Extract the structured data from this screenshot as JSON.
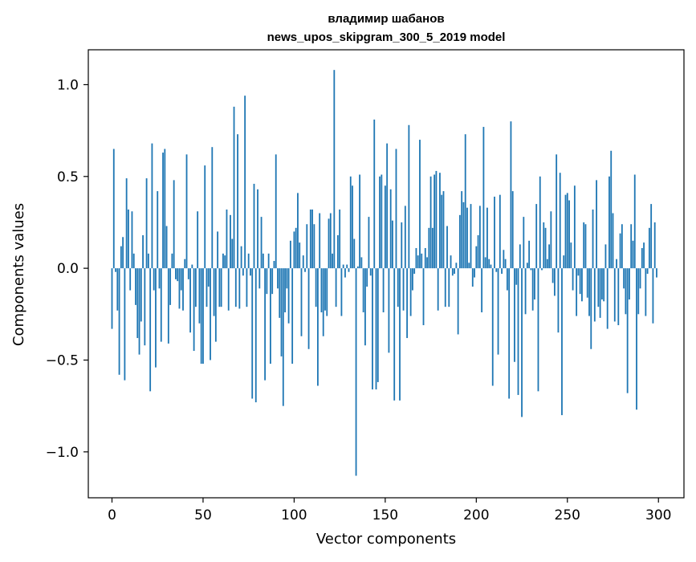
{
  "chart_data": {
    "type": "bar",
    "title": "владимир шабанов\nnews_upos_skipgram_300_5_2019 model",
    "title_lines": [
      "владимир шабанов",
      "news_upos_skipgram_300_5_2019 model"
    ],
    "xlabel": "Vector components",
    "ylabel": "Components values",
    "xlim": [
      -13,
      314
    ],
    "ylim": [
      -1.25,
      1.19
    ],
    "xticks": [
      0,
      50,
      100,
      150,
      200,
      250,
      300
    ],
    "xtick_labels": [
      "0",
      "50",
      "100",
      "150",
      "200",
      "250",
      "300"
    ],
    "yticks": [
      -1.0,
      -0.5,
      0.0,
      0.5,
      1.0
    ],
    "ytick_labels": [
      "−1.0",
      "−0.5",
      "0.0",
      "0.5",
      "1.0"
    ],
    "bar_color": "#1f77b4",
    "grid": false,
    "x": [
      0,
      1,
      2,
      3,
      4,
      5,
      6,
      7,
      8,
      9,
      10,
      11,
      12,
      13,
      14,
      15,
      16,
      17,
      18,
      19,
      20,
      21,
      22,
      23,
      24,
      25,
      26,
      27,
      28,
      29,
      30,
      31,
      32,
      33,
      34,
      35,
      36,
      37,
      38,
      39,
      40,
      41,
      42,
      43,
      44,
      45,
      46,
      47,
      48,
      49,
      50,
      51,
      52,
      53,
      54,
      55,
      56,
      57,
      58,
      59,
      60,
      61,
      62,
      63,
      64,
      65,
      66,
      67,
      68,
      69,
      70,
      71,
      72,
      73,
      74,
      75,
      76,
      77,
      78,
      79,
      80,
      81,
      82,
      83,
      84,
      85,
      86,
      87,
      88,
      89,
      90,
      91,
      92,
      93,
      94,
      95,
      96,
      97,
      98,
      99,
      100,
      101,
      102,
      103,
      104,
      105,
      106,
      107,
      108,
      109,
      110,
      111,
      112,
      113,
      114,
      115,
      116,
      117,
      118,
      119,
      120,
      121,
      122,
      123,
      124,
      125,
      126,
      127,
      128,
      129,
      130,
      131,
      132,
      133,
      134,
      135,
      136,
      137,
      138,
      139,
      140,
      141,
      142,
      143,
      144,
      145,
      146,
      147,
      148,
      149,
      150,
      151,
      152,
      153,
      154,
      155,
      156,
      157,
      158,
      159,
      160,
      161,
      162,
      163,
      164,
      165,
      166,
      167,
      168,
      169,
      170,
      171,
      172,
      173,
      174,
      175,
      176,
      177,
      178,
      179,
      180,
      181,
      182,
      183,
      184,
      185,
      186,
      187,
      188,
      189,
      190,
      191,
      192,
      193,
      194,
      195,
      196,
      197,
      198,
      199,
      200,
      201,
      202,
      203,
      204,
      205,
      206,
      207,
      208,
      209,
      210,
      211,
      212,
      213,
      214,
      215,
      216,
      217,
      218,
      219,
      220,
      221,
      222,
      223,
      224,
      225,
      226,
      227,
      228,
      229,
      230,
      231,
      232,
      233,
      234,
      235,
      236,
      237,
      238,
      239,
      240,
      241,
      242,
      243,
      244,
      245,
      246,
      247,
      248,
      249,
      250,
      251,
      252,
      253,
      254,
      255,
      256,
      257,
      258,
      259,
      260,
      261,
      262,
      263,
      264,
      265,
      266,
      267,
      268,
      269,
      270,
      271,
      272,
      273,
      274,
      275,
      276,
      277,
      278,
      279,
      280,
      281,
      282,
      283,
      284,
      285,
      286,
      287,
      288,
      289,
      290,
      291,
      292,
      293,
      294,
      295,
      296,
      297,
      298,
      299
    ],
    "values": [
      -0.33,
      0.65,
      -0.02,
      -0.23,
      -0.58,
      0.12,
      0.17,
      -0.61,
      0.49,
      0.32,
      -0.12,
      0.31,
      0.08,
      -0.2,
      -0.38,
      -0.47,
      -0.29,
      0.18,
      -0.42,
      0.49,
      0.08,
      -0.67,
      0.68,
      -0.12,
      -0.54,
      0.42,
      -0.11,
      -0.4,
      0.63,
      0.65,
      0.23,
      -0.41,
      -0.2,
      0.08,
      0.48,
      -0.06,
      -0.07,
      -0.22,
      -0.12,
      -0.23,
      0.05,
      0.62,
      -0.06,
      -0.35,
      0.02,
      -0.45,
      -0.21,
      0.31,
      -0.3,
      -0.52,
      -0.52,
      0.56,
      -0.21,
      -0.1,
      -0.5,
      0.66,
      -0.26,
      -0.4,
      0.2,
      -0.21,
      -0.21,
      0.08,
      0.07,
      0.32,
      -0.23,
      0.29,
      0.16,
      0.88,
      -0.21,
      0.73,
      -0.22,
      0.12,
      -0.04,
      0.94,
      -0.21,
      0.08,
      -0.04,
      -0.71,
      0.46,
      -0.73,
      0.43,
      -0.11,
      0.28,
      0.08,
      -0.61,
      -0.14,
      0.08,
      -0.52,
      -0.14,
      0.04,
      0.62,
      -0.11,
      -0.27,
      -0.48,
      -0.75,
      -0.24,
      -0.11,
      -0.3,
      0.15,
      -0.52,
      0.2,
      0.22,
      0.41,
      0.14,
      -0.37,
      0.07,
      -0.02,
      0.24,
      -0.44,
      0.32,
      0.32,
      0.24,
      -0.21,
      -0.64,
      0.3,
      -0.24,
      -0.37,
      -0.23,
      -0.26,
      0.27,
      0.3,
      0.08,
      1.08,
      -0.21,
      0.18,
      0.32,
      -0.26,
      0.02,
      -0.05,
      0.02,
      -0.02,
      0.5,
      0.45,
      0.16,
      -1.13,
      0.01,
      0.51,
      0.06,
      -0.24,
      -0.42,
      -0.1,
      0.28,
      -0.04,
      -0.66,
      0.81,
      -0.66,
      -0.62,
      0.5,
      0.51,
      -0.24,
      0.45,
      0.68,
      -0.46,
      0.43,
      0.26,
      -0.72,
      0.65,
      -0.21,
      -0.72,
      0.25,
      -0.23,
      0.34,
      -0.38,
      0.78,
      -0.26,
      -0.12,
      -0.03,
      0.11,
      0.07,
      0.7,
      0.08,
      -0.31,
      0.11,
      0.06,
      0.22,
      0.5,
      0.22,
      0.51,
      0.53,
      -0.23,
      0.52,
      0.4,
      0.42,
      -0.21,
      0.23,
      -0.21,
      0.07,
      -0.04,
      -0.03,
      0.03,
      -0.36,
      0.29,
      0.42,
      0.36,
      0.73,
      0.33,
      0.03,
      0.35,
      -0.1,
      -0.05,
      0.12,
      0.18,
      0.34,
      -0.24,
      0.77,
      0.06,
      0.33,
      0.05,
      0.02,
      -0.64,
      0.39,
      -0.02,
      -0.47,
      0.4,
      -0.03,
      0.1,
      0.05,
      -0.12,
      -0.71,
      0.8,
      0.42,
      -0.51,
      -0.09,
      -0.69,
      0.13,
      -0.81,
      0.28,
      -0.25,
      0.03,
      0.15,
      -0.01,
      -0.23,
      -0.17,
      0.35,
      -0.67,
      0.5,
      -0.01,
      0.25,
      0.22,
      0.05,
      0.13,
      0.31,
      -0.08,
      -0.15,
      0.62,
      -0.35,
      0.52,
      -0.8,
      0.07,
      0.4,
      0.41,
      0.37,
      0.14,
      -0.12,
      0.45,
      -0.26,
      -0.04,
      -0.14,
      -0.18,
      0.25,
      0.24,
      -0.16,
      -0.26,
      -0.44,
      0.32,
      -0.29,
      0.48,
      -0.21,
      -0.27,
      -0.17,
      -0.18,
      0.13,
      -0.33,
      0.5,
      0.64,
      0.3,
      -0.29,
      0.05,
      -0.31,
      0.19,
      0.24,
      -0.11,
      -0.25,
      -0.68,
      -0.17,
      0.24,
      0.15,
      0.51,
      -0.77,
      -0.25,
      -0.11,
      0.11,
      0.14,
      -0.26,
      -0.03,
      0.22,
      0.35,
      -0.3,
      0.25,
      -0.05
    ]
  }
}
